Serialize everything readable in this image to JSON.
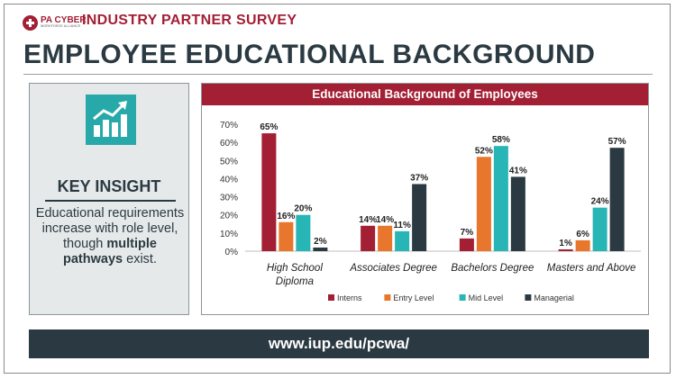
{
  "brand": {
    "logo_main": "PA CYBER",
    "logo_sub": "WORKFORCE ALLIANCE"
  },
  "header": {
    "survey_title": "INDUSTRY PARTNER SURVEY",
    "main_title": "EMPLOYEE EDUCATIONAL BACKGROUND"
  },
  "insight": {
    "icon": "bar-chart-growth-icon",
    "heading": "KEY INSIGHT",
    "body_text": "Educational requirements increase with role level, though",
    "body_bold": "multiple pathways",
    "body_end": "exist."
  },
  "footer": {
    "url": "www.iup.edu/pcwa/"
  },
  "chart_data": {
    "type": "bar",
    "title": "Educational Background of Employees",
    "categories": [
      "High School Diploma",
      "Associates Degree",
      "Bachelors Degree",
      "Masters and Above"
    ],
    "category_lines": [
      [
        "High School",
        "Diploma"
      ],
      [
        "Associates Degree"
      ],
      [
        "Bachelors Degree"
      ],
      [
        "Masters and Above"
      ]
    ],
    "series": [
      {
        "name": "Interns",
        "color": "#a31f34",
        "values": [
          65,
          14,
          7,
          1
        ]
      },
      {
        "name": "Entry Level",
        "color": "#e8762c",
        "values": [
          16,
          14,
          52,
          6
        ]
      },
      {
        "name": "Mid Level",
        "color": "#27b5b5",
        "values": [
          20,
          11,
          58,
          24
        ]
      },
      {
        "name": "Managerial",
        "color": "#2b3a42",
        "values": [
          2,
          37,
          41,
          57
        ]
      }
    ],
    "ylim": [
      0,
      70
    ],
    "yticks": [
      0,
      10,
      20,
      30,
      40,
      50,
      60,
      70
    ],
    "value_format": "percent",
    "legend_position": "bottom",
    "grid": false
  }
}
